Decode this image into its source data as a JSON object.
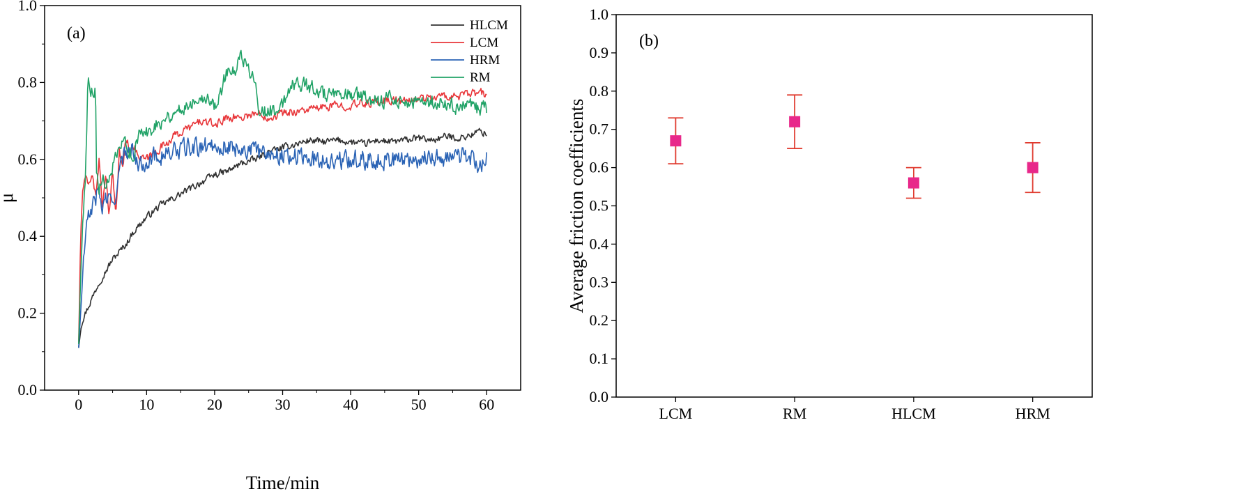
{
  "colors": {
    "HLCM": "#303030",
    "LCM": "#e8363a",
    "HRM": "#2a63b5",
    "RM": "#20a266",
    "marker": "#e8288a",
    "errorbar": "#e03a2e"
  },
  "chart_data": [
    {
      "type": "line",
      "panel_label": "(a)",
      "xlabel": "Time/min",
      "ylabel": "μ",
      "xlim": [
        -5,
        65
      ],
      "ylim": [
        0.0,
        1.0
      ],
      "x_ticks": [
        0,
        10,
        20,
        30,
        40,
        50,
        60
      ],
      "x_tick_labels": [
        "0",
        "10",
        "20",
        "30",
        "40",
        "50",
        "60"
      ],
      "y_ticks": [
        0.0,
        0.2,
        0.4,
        0.6,
        0.8,
        1.0
      ],
      "y_tick_labels": [
        "0.0",
        "0.2",
        "0.4",
        "0.6",
        "0.8",
        "1.0"
      ],
      "grid": false,
      "legend_position": "top-right",
      "series": [
        {
          "name": "HLCM",
          "color": "#303030",
          "noise": 0.008,
          "x": [
            0,
            0.5,
            1,
            2,
            3,
            4,
            5,
            6,
            7,
            8,
            9,
            10,
            12,
            14,
            16,
            18,
            20,
            22,
            24,
            26,
            28,
            30,
            32,
            34,
            36,
            38,
            40,
            42,
            44,
            46,
            48,
            50,
            52,
            54,
            56,
            58,
            59,
            60
          ],
          "y": [
            0.11,
            0.18,
            0.2,
            0.24,
            0.28,
            0.31,
            0.34,
            0.36,
            0.38,
            0.41,
            0.43,
            0.45,
            0.48,
            0.5,
            0.52,
            0.54,
            0.56,
            0.57,
            0.59,
            0.6,
            0.62,
            0.63,
            0.64,
            0.65,
            0.645,
            0.65,
            0.645,
            0.64,
            0.65,
            0.645,
            0.65,
            0.655,
            0.65,
            0.66,
            0.655,
            0.665,
            0.675,
            0.665
          ]
        },
        {
          "name": "LCM",
          "color": "#e8363a",
          "noise": 0.01,
          "x": [
            0,
            0.3,
            0.6,
            1,
            1.5,
            2,
            2.5,
            3,
            3.5,
            4,
            4.5,
            5,
            5.5,
            6,
            6.5,
            7,
            7.5,
            8,
            9,
            10,
            12,
            14,
            16,
            18,
            20,
            22,
            24,
            26,
            28,
            30,
            32,
            34,
            36,
            38,
            40,
            42,
            44,
            46,
            48,
            50,
            52,
            54,
            56,
            58,
            59,
            60
          ],
          "y": [
            0.12,
            0.4,
            0.52,
            0.55,
            0.53,
            0.57,
            0.5,
            0.6,
            0.48,
            0.55,
            0.45,
            0.57,
            0.46,
            0.62,
            0.58,
            0.66,
            0.62,
            0.64,
            0.6,
            0.6,
            0.63,
            0.66,
            0.68,
            0.7,
            0.69,
            0.71,
            0.71,
            0.72,
            0.71,
            0.72,
            0.725,
            0.73,
            0.735,
            0.74,
            0.74,
            0.745,
            0.75,
            0.755,
            0.75,
            0.76,
            0.76,
            0.765,
            0.765,
            0.77,
            0.775,
            0.765
          ]
        },
        {
          "name": "HRM",
          "color": "#2a63b5",
          "noise": 0.022,
          "x": [
            0,
            0.3,
            0.6,
            1,
            1.5,
            2,
            2.5,
            3,
            3.5,
            4,
            4.5,
            5,
            5.5,
            6,
            6.5,
            7,
            7.5,
            8,
            9,
            10,
            12,
            14,
            16,
            18,
            20,
            22,
            24,
            26,
            28,
            30,
            32,
            34,
            36,
            38,
            40,
            42,
            44,
            46,
            48,
            50,
            52,
            54,
            56,
            58,
            59,
            60
          ],
          "y": [
            0.11,
            0.2,
            0.3,
            0.4,
            0.45,
            0.48,
            0.5,
            0.52,
            0.47,
            0.5,
            0.49,
            0.48,
            0.52,
            0.56,
            0.6,
            0.62,
            0.64,
            0.62,
            0.58,
            0.6,
            0.61,
            0.62,
            0.63,
            0.63,
            0.64,
            0.63,
            0.63,
            0.62,
            0.62,
            0.61,
            0.61,
            0.6,
            0.6,
            0.595,
            0.6,
            0.6,
            0.6,
            0.6,
            0.6,
            0.6,
            0.61,
            0.6,
            0.61,
            0.6,
            0.58,
            0.61
          ]
        },
        {
          "name": "RM",
          "color": "#20a266",
          "noise": 0.018,
          "x": [
            0,
            0.5,
            1,
            1.4,
            1.6,
            2.5,
            2.6,
            3,
            3.5,
            4,
            5,
            6,
            7,
            8,
            9,
            10,
            12,
            14,
            16,
            18,
            20,
            21,
            22,
            23,
            24,
            25,
            26,
            26.5,
            27,
            28,
            29,
            30,
            31,
            32,
            34,
            36,
            38,
            40,
            42,
            44,
            46,
            48,
            50,
            52,
            54,
            56,
            58,
            60
          ],
          "y": [
            0.12,
            0.4,
            0.56,
            0.83,
            0.78,
            0.78,
            0.56,
            0.52,
            0.55,
            0.52,
            0.58,
            0.62,
            0.65,
            0.6,
            0.67,
            0.67,
            0.7,
            0.72,
            0.74,
            0.77,
            0.74,
            0.78,
            0.84,
            0.82,
            0.87,
            0.83,
            0.82,
            0.74,
            0.72,
            0.73,
            0.72,
            0.74,
            0.79,
            0.8,
            0.79,
            0.77,
            0.76,
            0.77,
            0.76,
            0.75,
            0.76,
            0.75,
            0.745,
            0.75,
            0.74,
            0.74,
            0.735,
            0.73
          ]
        }
      ]
    },
    {
      "type": "scatter",
      "panel_label": "(b)",
      "xlabel": "",
      "ylabel": "Average friction coefficients",
      "categories": [
        "LCM",
        "RM",
        "HLCM",
        "HRM"
      ],
      "ylim": [
        0.0,
        1.0
      ],
      "y_ticks": [
        0.0,
        0.1,
        0.2,
        0.3,
        0.4,
        0.5,
        0.6,
        0.7,
        0.8,
        0.9,
        1.0
      ],
      "y_tick_labels": [
        "0.0",
        "0.1",
        "0.2",
        "0.3",
        "0.4",
        "0.5",
        "0.6",
        "0.7",
        "0.8",
        "0.9",
        "1.0"
      ],
      "values": [
        0.67,
        0.72,
        0.56,
        0.6
      ],
      "error_low": [
        0.61,
        0.65,
        0.52,
        0.535
      ],
      "error_high": [
        0.73,
        0.79,
        0.6,
        0.665
      ],
      "grid": false
    }
  ]
}
